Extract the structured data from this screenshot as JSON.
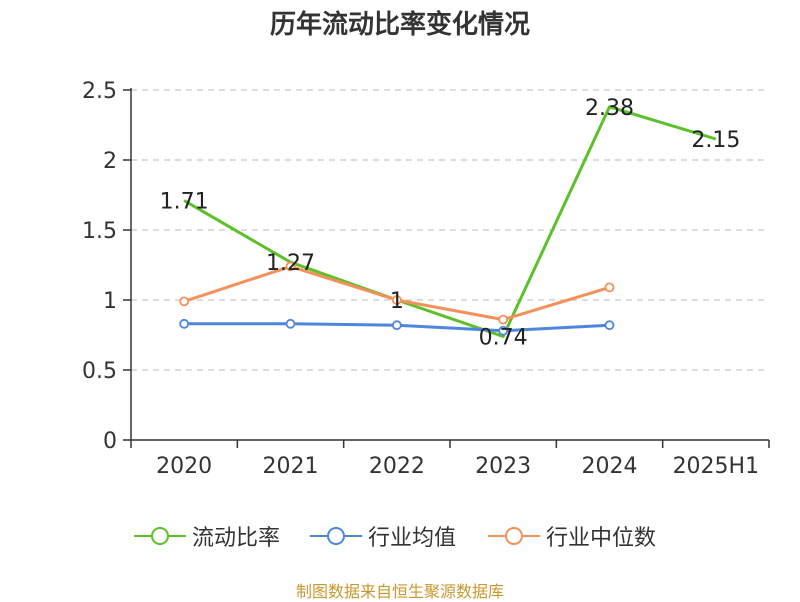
{
  "title": "历年流动比率变化情况",
  "source": "制图数据来自恒生聚源数据库",
  "chart_data": {
    "type": "line",
    "title": "历年流动比率变化情况",
    "categories": [
      "2020",
      "2021",
      "2022",
      "2023",
      "2024",
      "2025H1"
    ],
    "ylim": [
      0,
      2.5
    ],
    "yticks": [
      "0",
      "0.5",
      "1",
      "1.5",
      "2",
      "2.5"
    ],
    "grid": true,
    "legend_position": "bottom",
    "series": [
      {
        "name": "流动比率",
        "color": "#5cc128",
        "values": [
          1.71,
          1.27,
          1.0,
          0.74,
          2.38,
          2.15
        ],
        "labels": [
          "1.71",
          "1.27",
          "1",
          "0.74",
          "2.38",
          "2.15"
        ],
        "show_labels": true,
        "markers": false
      },
      {
        "name": "行业均值",
        "color": "#4f86dd",
        "values": [
          0.83,
          0.83,
          0.82,
          0.78,
          0.82,
          null
        ],
        "show_labels": false,
        "markers": true
      },
      {
        "name": "行业中位数",
        "color": "#f4905a",
        "values": [
          0.99,
          1.24,
          1.0,
          0.86,
          1.09,
          null
        ],
        "show_labels": false,
        "markers": true
      }
    ]
  }
}
